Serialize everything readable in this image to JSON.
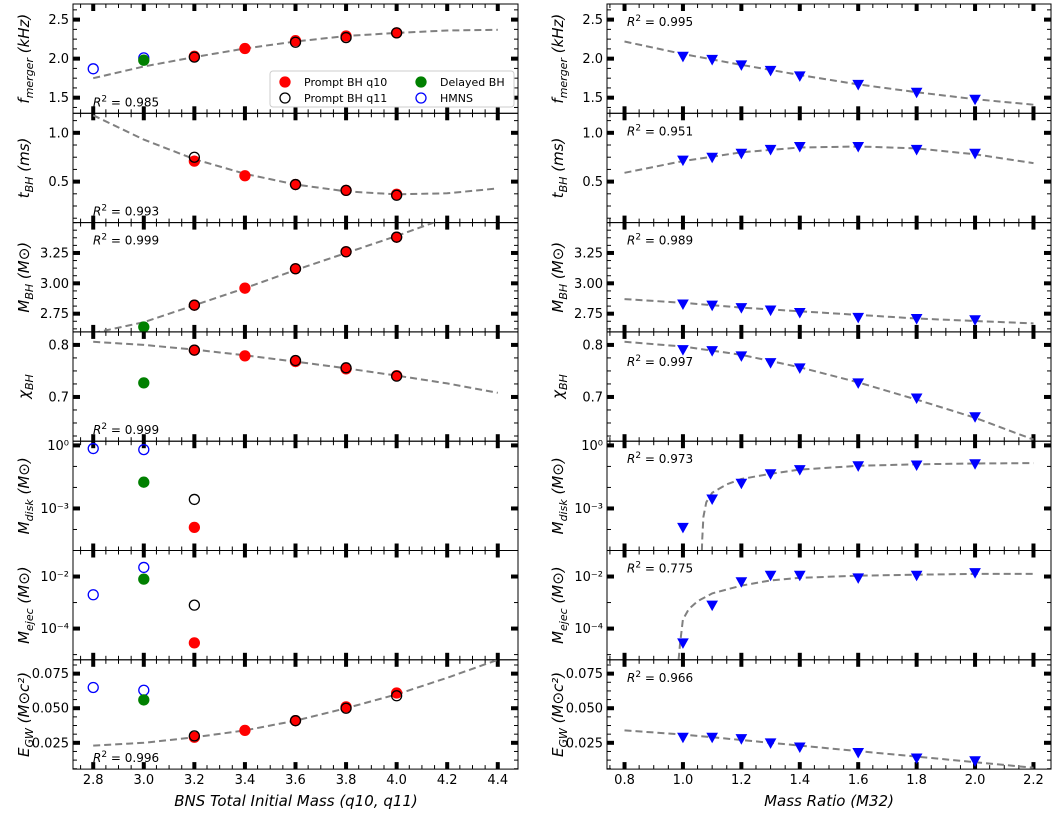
{
  "left": {
    "xlabel": "BNS Total Initial Mass (q10, q11)",
    "xlim": [
      2.72,
      4.48
    ],
    "xticks": [
      2.8,
      3.0,
      3.2,
      3.4,
      3.6,
      3.8,
      4.0,
      4.2,
      4.4
    ],
    "xtick_labels": [
      "2.8",
      "3.0",
      "3.2",
      "3.4",
      "3.6",
      "3.8",
      "4.0",
      "4.2",
      "4.4"
    ]
  },
  "right": {
    "xlabel": "Mass Ratio (M32)",
    "xlim": [
      0.74,
      2.26
    ],
    "xticks": [
      0.8,
      1.0,
      1.2,
      1.4,
      1.6,
      1.8,
      2.0,
      2.2
    ],
    "xtick_labels": [
      "0.8",
      "1.0",
      "1.2",
      "1.4",
      "1.6",
      "1.8",
      "2.0",
      "2.2"
    ]
  },
  "legend": {
    "entries": [
      {
        "label": "Prompt BH q10",
        "style": "filled",
        "color": "#ff0000"
      },
      {
        "label": "Delayed BH",
        "style": "filled",
        "color": "#008000"
      },
      {
        "label": "Prompt BH q11",
        "style": "open",
        "color": "#000000"
      },
      {
        "label": "HMNS",
        "style": "open",
        "color": "#0000ff"
      }
    ]
  },
  "colors": {
    "q10": "#ff0000",
    "q11": "#000000",
    "delayed": "#008000",
    "hmns": "#0000ff",
    "m32": "#0000ff",
    "fit": "#808080"
  },
  "chart_data": [
    {
      "type": "scatter",
      "quantity": "f_merger",
      "ylabel_base": "f",
      "ylabel_sub": "merger",
      "ylabel_unit": " (kHz)",
      "ylim": [
        1.3,
        2.7
      ],
      "log": false,
      "yticks": [
        1.5,
        2.0,
        2.5
      ],
      "ytick_labels": [
        "1.5",
        "2.0",
        "2.5"
      ],
      "left": {
        "r2": "0.985",
        "r2_pos": "bottom",
        "q10": {
          "x": [
            3.2,
            3.4,
            3.6,
            3.8,
            4.0
          ],
          "y": [
            2.03,
            2.13,
            2.23,
            2.29,
            2.33
          ]
        },
        "q11": {
          "x": [
            3.2,
            3.6,
            3.8,
            4.0
          ],
          "y": [
            2.02,
            2.21,
            2.27,
            2.33
          ]
        },
        "delayed": {
          "x": [
            3.0
          ],
          "y": [
            1.98
          ]
        },
        "hmns": {
          "x": [
            2.8,
            3.0
          ],
          "y": [
            1.87,
            2.01
          ]
        },
        "fit": {
          "x": [
            2.8,
            3.0,
            3.2,
            3.4,
            3.6,
            3.8,
            4.0,
            4.2,
            4.4
          ],
          "y": [
            1.75,
            1.9,
            2.02,
            2.13,
            2.22,
            2.29,
            2.33,
            2.36,
            2.37
          ]
        }
      },
      "right": {
        "r2": "0.995",
        "r2_pos": "top",
        "points": {
          "x": [
            1.0,
            1.1,
            1.2,
            1.3,
            1.4,
            1.6,
            1.8,
            2.0
          ],
          "y": [
            2.03,
            1.99,
            1.92,
            1.85,
            1.78,
            1.67,
            1.57,
            1.48
          ]
        },
        "fit": {
          "x": [
            0.8,
            1.0,
            1.2,
            1.4,
            1.6,
            1.8,
            2.0,
            2.2
          ],
          "y": [
            2.22,
            2.06,
            1.92,
            1.79,
            1.67,
            1.57,
            1.48,
            1.41
          ]
        }
      }
    },
    {
      "type": "scatter",
      "quantity": "t_BH",
      "ylabel_base": "t",
      "ylabel_sub": "BH",
      "ylabel_unit": " (ms)",
      "ylim": [
        0.08,
        1.2
      ],
      "log": false,
      "yticks": [
        0.5,
        1.0
      ],
      "ytick_labels": [
        "0.5",
        "1.0"
      ],
      "left": {
        "r2": "0.993",
        "r2_pos": "bottom",
        "q10": {
          "x": [
            3.2,
            3.4,
            3.6,
            3.8,
            4.0
          ],
          "y": [
            0.71,
            0.56,
            0.47,
            0.41,
            0.37
          ]
        },
        "q11": {
          "x": [
            3.2,
            3.6,
            3.8,
            4.0
          ],
          "y": [
            0.75,
            0.47,
            0.41,
            0.36
          ]
        },
        "delayed": {
          "x": [],
          "y": []
        },
        "hmns": {
          "x": [],
          "y": []
        },
        "fit": {
          "x": [
            2.8,
            3.0,
            3.2,
            3.4,
            3.6,
            3.8,
            4.0,
            4.2,
            4.4
          ],
          "y": [
            1.18,
            0.93,
            0.73,
            0.58,
            0.47,
            0.4,
            0.37,
            0.38,
            0.43
          ]
        }
      },
      "right": {
        "r2": "0.951",
        "r2_pos": "top",
        "points": {
          "x": [
            1.0,
            1.1,
            1.2,
            1.3,
            1.4,
            1.6,
            1.8,
            2.0
          ],
          "y": [
            0.72,
            0.75,
            0.79,
            0.83,
            0.86,
            0.86,
            0.83,
            0.79
          ]
        },
        "fit": {
          "x": [
            0.8,
            1.0,
            1.2,
            1.4,
            1.6,
            1.8,
            2.0,
            2.2
          ],
          "y": [
            0.59,
            0.71,
            0.8,
            0.85,
            0.86,
            0.84,
            0.78,
            0.69
          ]
        }
      }
    },
    {
      "type": "scatter",
      "quantity": "M_BH",
      "ylabel_base": "M",
      "ylabel_sub": "BH",
      "ylabel_unit": " (M⊙)",
      "ylim": [
        2.6,
        3.5
      ],
      "log": false,
      "yticks": [
        2.75,
        3.0,
        3.25
      ],
      "ytick_labels": [
        "2.75",
        "3.00",
        "3.25"
      ],
      "left": {
        "r2": "0.999",
        "r2_pos": "top",
        "q10": {
          "x": [
            3.2,
            3.4,
            3.6,
            3.8,
            4.0
          ],
          "y": [
            2.82,
            2.96,
            3.12,
            3.26,
            3.38
          ]
        },
        "q11": {
          "x": [
            3.2,
            3.6,
            3.8,
            4.0
          ],
          "y": [
            2.82,
            3.12,
            3.26,
            3.38
          ]
        },
        "delayed": {
          "x": [
            3.0
          ],
          "y": [
            2.64
          ]
        },
        "hmns": {
          "x": [],
          "y": []
        },
        "fit": {
          "x": [
            2.8,
            3.0,
            3.2,
            3.4,
            3.6,
            3.8,
            4.0,
            4.2
          ],
          "y": [
            2.59,
            2.68,
            2.82,
            2.96,
            3.11,
            3.25,
            3.39,
            3.54
          ]
        }
      },
      "right": {
        "r2": "0.989",
        "r2_pos": "top",
        "points": {
          "x": [
            1.0,
            1.1,
            1.2,
            1.3,
            1.4,
            1.6,
            1.8,
            2.0
          ],
          "y": [
            2.83,
            2.82,
            2.8,
            2.78,
            2.76,
            2.72,
            2.71,
            2.7
          ]
        },
        "fit": {
          "x": [
            0.8,
            1.0,
            1.2,
            1.4,
            1.6,
            1.8,
            2.0,
            2.2
          ],
          "y": [
            2.87,
            2.84,
            2.8,
            2.77,
            2.74,
            2.71,
            2.69,
            2.67
          ]
        }
      }
    },
    {
      "type": "scatter",
      "quantity": "chi_BH",
      "ylabel_base": "χ",
      "ylabel_sub": "BH",
      "ylabel_unit": "",
      "ylim": [
        0.615,
        0.825
      ],
      "log": false,
      "yticks": [
        0.7,
        0.8
      ],
      "ytick_labels": [
        "0.7",
        "0.8"
      ],
      "left": {
        "r2": "0.999",
        "r2_pos": "bottom",
        "q10": {
          "x": [
            3.2,
            3.4,
            3.6,
            3.8,
            4.0
          ],
          "y": [
            0.79,
            0.779,
            0.768,
            0.754,
            0.741
          ]
        },
        "q11": {
          "x": [
            3.2,
            3.6,
            3.8,
            4.0
          ],
          "y": [
            0.79,
            0.77,
            0.756,
            0.74
          ]
        },
        "delayed": {
          "x": [
            3.0
          ],
          "y": [
            0.727
          ]
        },
        "hmns": {
          "x": [],
          "y": []
        },
        "fit": {
          "x": [
            2.8,
            3.0,
            3.2,
            3.4,
            3.6,
            3.8,
            4.0,
            4.2,
            4.4
          ],
          "y": [
            0.806,
            0.8,
            0.791,
            0.78,
            0.768,
            0.755,
            0.741,
            0.726,
            0.708
          ]
        }
      },
      "right": {
        "r2": "0.997",
        "r2_pos": "middle",
        "points": {
          "x": [
            1.0,
            1.1,
            1.2,
            1.3,
            1.4,
            1.6,
            1.8,
            2.0
          ],
          "y": [
            0.791,
            0.789,
            0.779,
            0.766,
            0.756,
            0.727,
            0.698,
            0.662
          ]
        },
        "fit": {
          "x": [
            0.8,
            1.0,
            1.2,
            1.4,
            1.6,
            1.8,
            2.0,
            2.2
          ],
          "y": [
            0.806,
            0.797,
            0.781,
            0.757,
            0.728,
            0.695,
            0.66,
            0.618
          ]
        }
      }
    },
    {
      "type": "scatter",
      "quantity": "M_disk",
      "ylabel_base": "M",
      "ylabel_sub": "disk",
      "ylabel_unit": " (M⊙)",
      "ylim_log10": [
        -5.0,
        0.2
      ],
      "log": true,
      "yticks_log10": [
        -3,
        0
      ],
      "ytick_labels": [
        "10⁻³",
        "10⁰"
      ],
      "left": {
        "r2": "",
        "r2_pos": "none",
        "q10": {
          "x": [
            3.2
          ],
          "y_log10": [
            -3.9
          ]
        },
        "q11": {
          "x": [
            3.2
          ],
          "y_log10": [
            -2.57
          ]
        },
        "delayed": {
          "x": [
            3.0
          ],
          "y_log10": [
            -1.75
          ]
        },
        "hmns": {
          "x": [
            2.8,
            3.0
          ],
          "y_log10": [
            -0.15,
            -0.2
          ]
        },
        "fit": {
          "x": [],
          "y_log10": []
        }
      },
      "right": {
        "r2": "0.973",
        "r2_pos": "top",
        "points": {
          "x": [
            1.0,
            1.1,
            1.2,
            1.3,
            1.4,
            1.6,
            1.8,
            2.0
          ],
          "y_log10": [
            -3.9,
            -2.55,
            -1.8,
            -1.35,
            -1.15,
            -0.97,
            -0.93,
            -0.87
          ]
        },
        "fit": {
          "x": [
            1.065,
            1.066,
            1.07,
            1.08,
            1.1,
            1.15,
            1.2,
            1.3,
            1.4,
            1.6,
            1.8,
            2.0,
            2.2
          ],
          "y_log10": [
            -5.0,
            -4.5,
            -3.4,
            -2.7,
            -2.25,
            -1.85,
            -1.6,
            -1.35,
            -1.15,
            -0.97,
            -0.9,
            -0.86,
            -0.84
          ]
        }
      }
    },
    {
      "type": "scatter",
      "quantity": "M_ejec",
      "ylabel_base": "M",
      "ylabel_sub": "ejec",
      "ylabel_unit": " (M⊙)",
      "ylim_log10": [
        -5.2,
        -1.0
      ],
      "log": true,
      "yticks_log10": [
        -4,
        -2
      ],
      "ytick_labels": [
        "10⁻⁴",
        "10⁻²"
      ],
      "left": {
        "r2": "",
        "r2_pos": "none",
        "q10": {
          "x": [
            3.2
          ],
          "y_log10": [
            -4.55
          ]
        },
        "q11": {
          "x": [
            3.2
          ],
          "y_log10": [
            -3.1
          ]
        },
        "delayed": {
          "x": [
            3.0
          ],
          "y_log10": [
            -2.1
          ]
        },
        "hmns": {
          "x": [
            2.8,
            3.0
          ],
          "y_log10": [
            -2.7,
            -1.65
          ]
        },
        "fit": {
          "x": [],
          "y_log10": []
        }
      },
      "right": {
        "r2": "0.775",
        "r2_pos": "top",
        "points": {
          "x": [
            1.0,
            1.1,
            1.2,
            1.3,
            1.4,
            1.6,
            1.8,
            2.0
          ],
          "y_log10": [
            -4.55,
            -3.1,
            -2.2,
            -1.95,
            -1.95,
            -2.05,
            -1.95,
            -1.85
          ]
        },
        "fit": {
          "x": [
            0.985,
            0.99,
            1.0,
            1.02,
            1.05,
            1.1,
            1.2,
            1.3,
            1.4,
            1.6,
            1.8,
            2.0,
            2.2
          ],
          "y_log10": [
            -5.2,
            -4.6,
            -3.65,
            -3.25,
            -2.95,
            -2.65,
            -2.35,
            -2.15,
            -2.05,
            -1.97,
            -1.93,
            -1.9,
            -1.9
          ]
        }
      }
    },
    {
      "type": "scatter",
      "quantity": "E_GW",
      "ylabel_base": "E",
      "ylabel_sub": "GW",
      "ylabel_unit": " (M⊙c²)",
      "ylim": [
        0.006,
        0.085
      ],
      "log": false,
      "yticks": [
        0.025,
        0.05,
        0.075
      ],
      "ytick_labels": [
        "0.025",
        "0.050",
        "0.075"
      ],
      "left": {
        "r2": "0.996",
        "r2_pos": "bottom",
        "q10": {
          "x": [
            3.2,
            3.4,
            3.6,
            3.8,
            4.0
          ],
          "y": [
            0.029,
            0.034,
            0.041,
            0.051,
            0.061
          ]
        },
        "q11": {
          "x": [
            3.2,
            3.6,
            3.8,
            4.0
          ],
          "y": [
            0.03,
            0.041,
            0.05,
            0.059
          ]
        },
        "delayed": {
          "x": [
            3.0
          ],
          "y": [
            0.056
          ]
        },
        "hmns": {
          "x": [
            2.8,
            3.0
          ],
          "y": [
            0.065,
            0.063
          ]
        },
        "fit": {
          "x": [
            2.8,
            3.0,
            3.2,
            3.4,
            3.6,
            3.8,
            4.0,
            4.2,
            4.4
          ],
          "y": [
            0.023,
            0.025,
            0.029,
            0.034,
            0.041,
            0.05,
            0.06,
            0.072,
            0.085
          ]
        }
      },
      "right": {
        "r2": "0.966",
        "r2_pos": "top",
        "points": {
          "x": [
            1.0,
            1.1,
            1.2,
            1.3,
            1.4,
            1.6,
            1.8,
            2.0
          ],
          "y": [
            0.029,
            0.029,
            0.028,
            0.025,
            0.022,
            0.018,
            0.014,
            0.012
          ]
        },
        "fit": {
          "x": [
            0.8,
            1.0,
            1.2,
            1.4,
            1.6,
            1.8,
            2.0,
            2.2
          ],
          "y": [
            0.034,
            0.031,
            0.027,
            0.023,
            0.019,
            0.015,
            0.011,
            0.007
          ]
        }
      }
    }
  ]
}
